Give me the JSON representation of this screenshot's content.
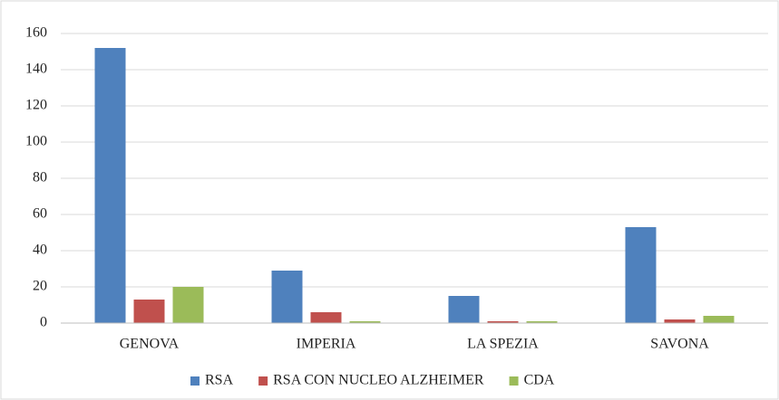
{
  "chart_data": {
    "type": "bar",
    "categories": [
      "GENOVA",
      "IMPERIA",
      "LA SPEZIA",
      "SAVONA"
    ],
    "series": [
      {
        "name": "RSA",
        "color": "#4f81bd",
        "values": [
          152,
          29,
          15,
          53
        ]
      },
      {
        "name": "RSA CON NUCLEO ALZHEIMER",
        "color": "#c0504d",
        "values": [
          13,
          6,
          1,
          2
        ]
      },
      {
        "name": "CDA",
        "color": "#9bbb59",
        "values": [
          20,
          1,
          1,
          4
        ]
      }
    ],
    "ylim": [
      0,
      160
    ],
    "yticks": [
      0,
      20,
      40,
      60,
      80,
      100,
      120,
      140,
      160
    ],
    "grid": true,
    "legend": "bottom"
  }
}
